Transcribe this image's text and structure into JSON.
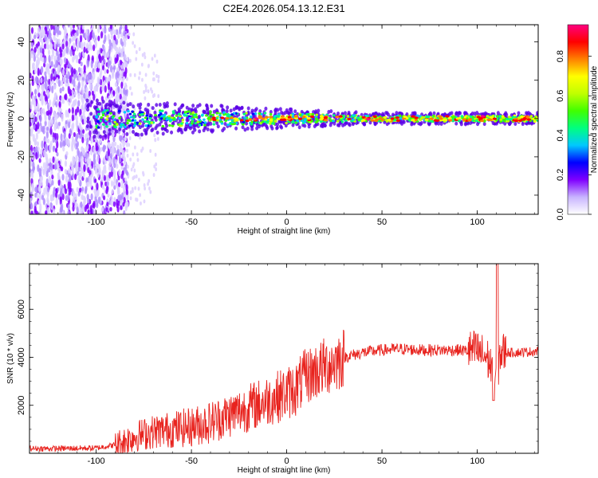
{
  "title": "C2E4.2026.054.13.12.E31",
  "chart_data": [
    {
      "type": "heatmap",
      "xlabel": "Height of straight line (km)",
      "ylabel": "Frequency (Hz)",
      "xlim": [
        -135,
        132
      ],
      "ylim": [
        -50,
        49
      ],
      "xticks": [
        -100,
        -50,
        0,
        50,
        100
      ],
      "yticks": [
        -40,
        -20,
        0,
        20,
        40
      ],
      "colorbar": {
        "label": "Normalized spectral amplitude",
        "range": [
          0,
          0.96
        ],
        "ticks": [
          "0.0",
          "0.2",
          "0.4",
          "0.6",
          "0.8"
        ],
        "tick_values": [
          0,
          0.2,
          0.4,
          0.6,
          0.8
        ],
        "colors": [
          "#ffffff",
          "#c8b4ff",
          "#8000ff",
          "#0000ff",
          "#00c8ff",
          "#00ff80",
          "#40ff00",
          "#c0ff00",
          "#ffff00",
          "#ff8000",
          "#ff0000",
          "#ff0080"
        ]
      },
      "noise_region_km": [
        -135,
        -87
      ],
      "band": {
        "center_hz": 0,
        "half_width_hz_at_start": 10,
        "half_width_hz_at_end": 3,
        "start_km": -105
      }
    },
    {
      "type": "line",
      "xlabel": "Height of straight line (km)",
      "ylabel": "SNR (10 * v/v)",
      "xlim": [
        -135,
        132
      ],
      "ylim": [
        0,
        7900
      ],
      "xticks": [
        -100,
        -50,
        0,
        50,
        100
      ],
      "yticks": [
        2000,
        4000,
        6000
      ],
      "color": "#e8231e",
      "series": [
        {
          "name": "SNR",
          "x": [
            -135,
            -120,
            -100,
            -90,
            -80,
            -70,
            -60,
            -50,
            -40,
            -30,
            -20,
            -10,
            0,
            5,
            10,
            15,
            20,
            25,
            30,
            35,
            40,
            50,
            60,
            70,
            80,
            90,
            100,
            105,
            108,
            110,
            112,
            115,
            120,
            132
          ],
          "y": [
            200,
            200,
            220,
            350,
            700,
            900,
            1000,
            1100,
            1300,
            1600,
            1900,
            2200,
            2500,
            2700,
            3200,
            3400,
            3600,
            3800,
            4000,
            4100,
            4200,
            4300,
            4350,
            4300,
            4300,
            4300,
            4250,
            4000,
            3500,
            3000,
            4200,
            4200,
            4200,
            4250
          ]
        }
      ]
    }
  ]
}
